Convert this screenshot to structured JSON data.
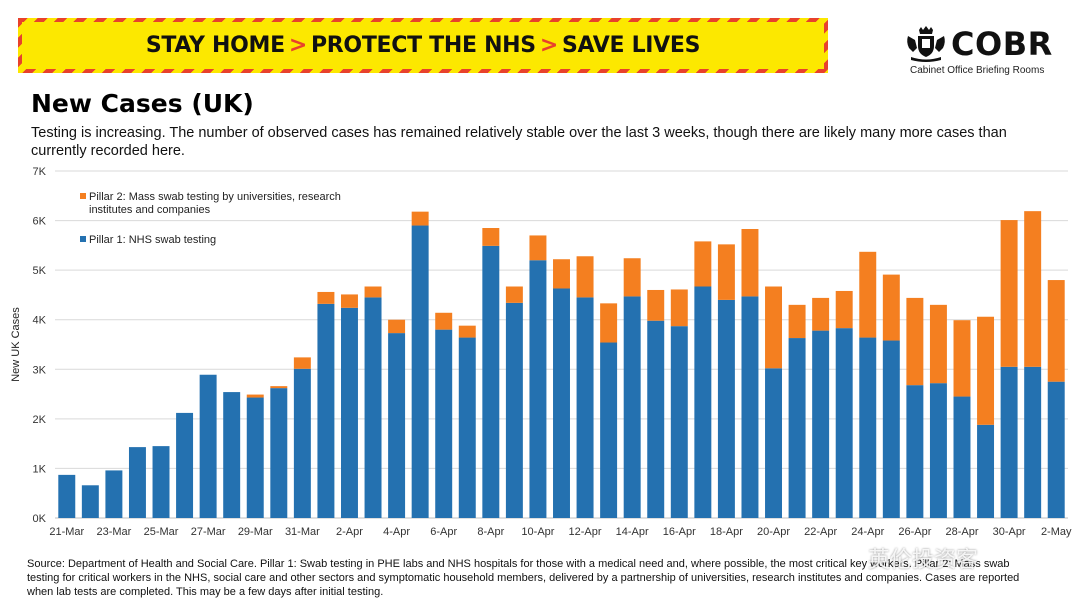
{
  "banner": {
    "part1": "STAY HOME",
    "part2": "PROTECT THE NHS",
    "part3": "SAVE LIVES",
    "chevron": ">"
  },
  "logo": {
    "name": "COBR",
    "subtitle": "Cabinet Office Briefing Rooms",
    "icon": "royal-crest-icon"
  },
  "page_title": "New Cases (UK)",
  "description": "Testing is increasing. The number of observed cases has remained relatively stable over the last 3 weeks, though there are likely many more cases than currently recorded here.",
  "source_note": "Source: Department of Health and Social Care. Pillar 1: Swab testing in PHE labs and NHS hospitals for those with a medical need and, where possible, the most critical key workers. Pillar 2: Mass swab testing for critical workers in the NHS, social care and other sectors and symptomatic household members, delivered by a partnership of universities, research institutes and companies. Cases are reported when lab tests are completed. This may be a few days after initial testing.",
  "watermark": "英伦投资客",
  "colors": {
    "pillar1": "#2471b0",
    "pillar2": "#f47f20",
    "grid": "#d9d9d9"
  },
  "chart_data": {
    "type": "bar",
    "stacked": true,
    "ylabel": "New UK Cases",
    "ylim": [
      0,
      7000
    ],
    "yticks": [
      0,
      1000,
      2000,
      3000,
      4000,
      5000,
      6000,
      7000
    ],
    "ytick_labels": [
      "0K",
      "1K",
      "2K",
      "3K",
      "4K",
      "5K",
      "6K",
      "7K"
    ],
    "grid": true,
    "legend_position": "top-left",
    "categories": [
      "21-Mar",
      "22-Mar",
      "23-Mar",
      "24-Mar",
      "25-Mar",
      "26-Mar",
      "27-Mar",
      "28-Mar",
      "29-Mar",
      "30-Mar",
      "31-Mar",
      "1-Apr",
      "2-Apr",
      "3-Apr",
      "4-Apr",
      "5-Apr",
      "6-Apr",
      "7-Apr",
      "8-Apr",
      "9-Apr",
      "10-Apr",
      "11-Apr",
      "12-Apr",
      "13-Apr",
      "14-Apr",
      "15-Apr",
      "16-Apr",
      "17-Apr",
      "18-Apr",
      "19-Apr",
      "20-Apr",
      "21-Apr",
      "22-Apr",
      "23-Apr",
      "24-Apr",
      "25-Apr",
      "26-Apr",
      "27-Apr",
      "28-Apr",
      "29-Apr",
      "30-Apr",
      "1-May",
      "2-May"
    ],
    "xtick_labels": [
      "21-Mar",
      "",
      "23-Mar",
      "",
      "25-Mar",
      "",
      "27-Mar",
      "",
      "29-Mar",
      "",
      "31-Mar",
      "",
      "2-Apr",
      "",
      "4-Apr",
      "",
      "6-Apr",
      "",
      "8-Apr",
      "",
      "10-Apr",
      "",
      "12-Apr",
      "",
      "14-Apr",
      "",
      "16-Apr",
      "",
      "18-Apr",
      "",
      "20-Apr",
      "",
      "22-Apr",
      "",
      "24-Apr",
      "",
      "26-Apr",
      "",
      "28-Apr",
      "",
      "30-Apr",
      "",
      "2-May"
    ],
    "series": [
      {
        "name": "Pillar 1: NHS swab testing",
        "color": "#2471b0",
        "values": [
          870,
          660,
          960,
          1430,
          1450,
          2120,
          2890,
          2540,
          2430,
          2620,
          3010,
          4320,
          4240,
          4450,
          3730,
          5900,
          3800,
          3640,
          5490,
          4340,
          5200,
          4630,
          4450,
          3540,
          4470,
          3980,
          3870,
          4670,
          4400,
          4470,
          3020,
          3630,
          3780,
          3830,
          3640,
          3580,
          2680,
          2720,
          2450,
          1880,
          3050,
          3050,
          2750
        ]
      },
      {
        "name": "Pillar 2: Mass swab testing by universities, research institutes and companies",
        "color": "#f47f20",
        "values": [
          0,
          0,
          0,
          0,
          0,
          0,
          0,
          0,
          60,
          40,
          230,
          240,
          270,
          220,
          270,
          280,
          340,
          240,
          360,
          330,
          500,
          590,
          830,
          790,
          770,
          620,
          740,
          910,
          1120,
          1360,
          1650,
          670,
          660,
          750,
          1730,
          1330,
          1760,
          1580,
          1540,
          2180,
          2960,
          3140,
          2050
        ]
      }
    ]
  }
}
